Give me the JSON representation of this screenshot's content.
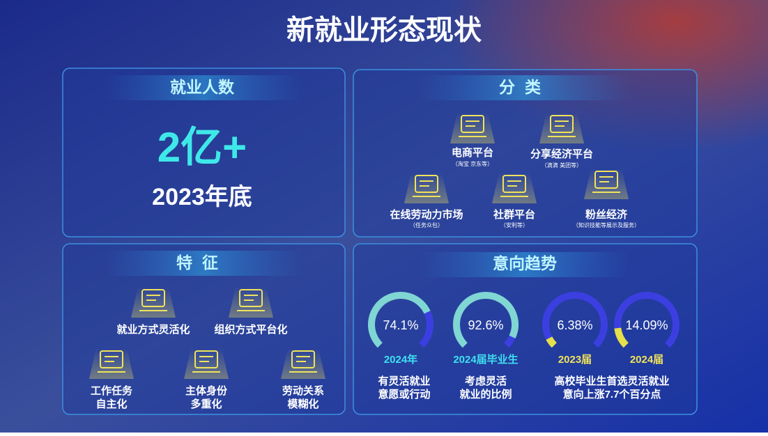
{
  "title": "新就业形态现状",
  "employment": {
    "heading": "就业人数",
    "value": "2亿+",
    "caption": "2023年底"
  },
  "categories": {
    "heading": "分类",
    "items": [
      {
        "label": "电商平台",
        "note": "（淘宝 京东等）"
      },
      {
        "label": "分享经济平台",
        "note": "（滴滴 美团等）"
      },
      {
        "label": "在线劳动力市场",
        "note": "（任务众包）"
      },
      {
        "label": "社群平台",
        "note": "（安利等）"
      },
      {
        "label": "粉丝经济",
        "note": "（知识技能等展示及服务）"
      }
    ]
  },
  "features": {
    "heading": "特征",
    "items": [
      {
        "lines": [
          "就业方式灵活化"
        ]
      },
      {
        "lines": [
          "组织方式平台化"
        ]
      },
      {
        "lines": [
          "工作任务",
          "自主化"
        ]
      },
      {
        "lines": [
          "主体身份",
          "多重化"
        ]
      },
      {
        "lines": [
          "劳动关系",
          "模糊化"
        ]
      }
    ]
  },
  "trends": {
    "heading": "意向趋势",
    "gauges": [
      {
        "value": 74.1,
        "label": "74.1%",
        "year": "2024年"
      },
      {
        "value": 92.6,
        "label": "92.6%",
        "year": "2024届毕业生"
      },
      {
        "value": 6.38,
        "label": "6.38%",
        "year": "2023届"
      },
      {
        "value": 14.09,
        "label": "14.09%",
        "year": "2024届"
      }
    ],
    "notes": [
      {
        "lines": [
          "有灵活就业",
          "意愿或行动"
        ]
      },
      {
        "lines": [
          "考虑灵活",
          "就业的比例"
        ]
      },
      {
        "lines": [
          "高校毕业生首选灵活就业",
          "意向上涨7.7个百分点"
        ]
      }
    ]
  }
}
